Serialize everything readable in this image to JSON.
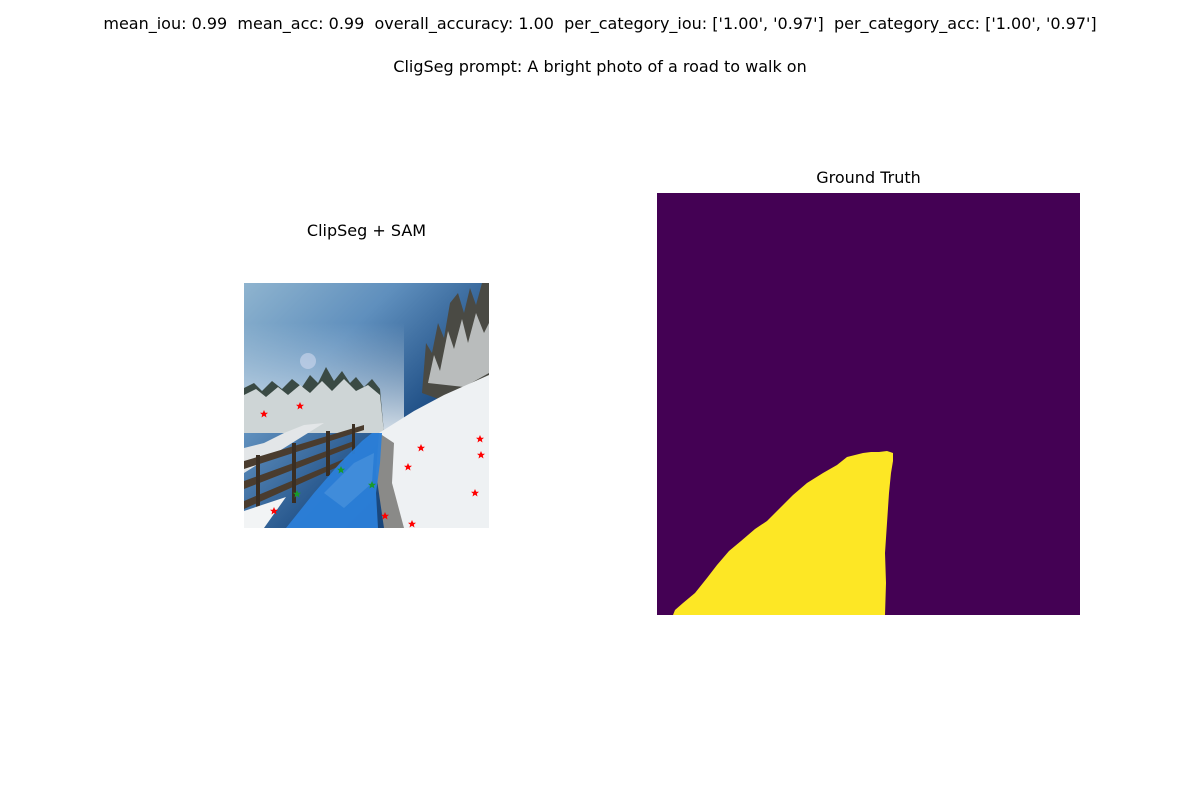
{
  "header": {
    "metrics": {
      "mean_iou_label": "mean_iou:",
      "mean_iou": "0.99",
      "mean_acc_label": "mean_acc:",
      "mean_acc": "0.99",
      "overall_accuracy_label": "overall_accuracy:",
      "overall_accuracy": "1.00",
      "per_category_iou_label": "per_category_iou:",
      "per_category_iou": "['1.00', '0.97']",
      "per_category_acc_label": "per_category_acc:",
      "per_category_acc": "['1.00', '0.97']"
    },
    "prompt_label": "CligSeg prompt:",
    "prompt_text": "A bright photo of a road to walk on"
  },
  "panels": {
    "left": {
      "title": "ClipSeg + SAM",
      "mask_color": "#2b7fd9",
      "positive_point_color": "#1a9a2a",
      "negative_point_color": "#ff0000"
    },
    "right": {
      "title": "Ground Truth",
      "background_color": "#440154",
      "foreground_color": "#fde725"
    }
  }
}
